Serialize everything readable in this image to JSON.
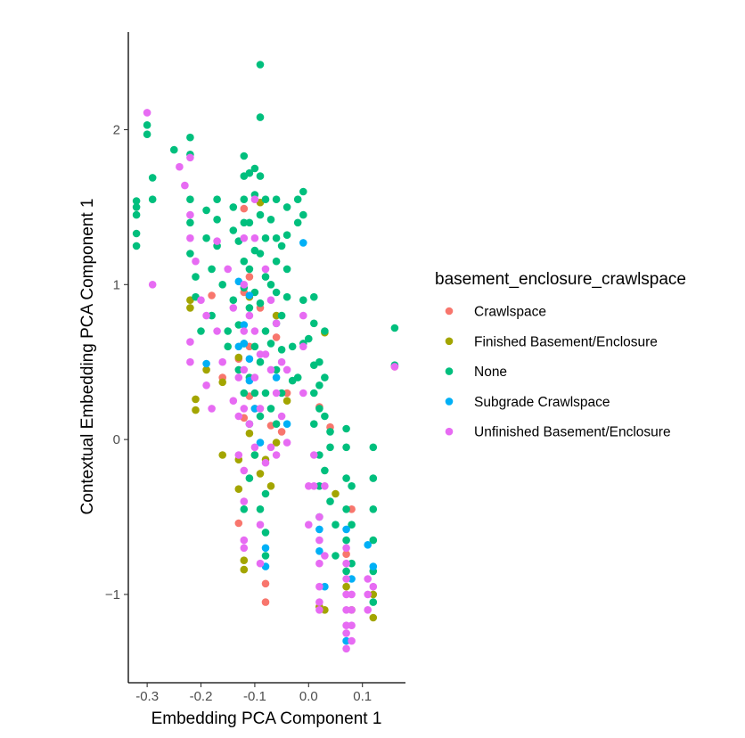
{
  "chart_data": {
    "type": "scatter",
    "xlabel": "Embedding PCA Component 1",
    "ylabel": "Contextual Embedding PCA Component 1",
    "xlim": [
      -0.335,
      0.18
    ],
    "ylim": [
      -1.57,
      2.63
    ],
    "x_ticks": [
      -0.3,
      -0.2,
      -0.1,
      0.0,
      0.1
    ],
    "x_tick_labels": [
      "-0.3",
      "-0.2",
      "-0.1",
      "0.0",
      "0.1"
    ],
    "y_ticks": [
      -1,
      0,
      1,
      2
    ],
    "y_tick_labels": [
      "−1",
      "0",
      "1",
      "2"
    ],
    "grid": false,
    "legend": {
      "title": "basement_enclosure_crawlspace",
      "placement": "right"
    },
    "series": [
      {
        "name": "Crawlspace",
        "color": "#F8766D",
        "points": [
          [
            -0.12,
            1.49
          ],
          [
            -0.11,
            1.05
          ],
          [
            -0.09,
            0.85
          ],
          [
            -0.13,
            0.52
          ],
          [
            -0.16,
            0.4
          ],
          [
            -0.11,
            0.28
          ],
          [
            -0.06,
            0.66
          ],
          [
            -0.05,
            0.05
          ],
          [
            0.02,
            0.21
          ],
          [
            -0.13,
            -0.54
          ],
          [
            -0.08,
            -0.93
          ],
          [
            -0.08,
            -1.05
          ],
          [
            0.02,
            -1.08
          ],
          [
            0.07,
            -0.74
          ],
          [
            -0.07,
            0.09
          ],
          [
            -0.11,
            0.6
          ],
          [
            0.16,
            0.47
          ],
          [
            -0.12,
            0.95
          ],
          [
            -0.04,
            0.3
          ],
          [
            0.04,
            0.08
          ],
          [
            -0.18,
            0.93
          ],
          [
            -0.1,
            0.2
          ],
          [
            0.08,
            -0.45
          ],
          [
            -0.12,
            0.14
          ]
        ]
      },
      {
        "name": "Finished Basement/Enclosure",
        "color": "#A3A500",
        "points": [
          [
            -0.09,
            1.53
          ],
          [
            -0.22,
            0.85
          ],
          [
            -0.21,
            0.26
          ],
          [
            -0.21,
            0.19
          ],
          [
            -0.19,
            0.45
          ],
          [
            -0.16,
            0.37
          ],
          [
            -0.16,
            -0.1
          ],
          [
            -0.13,
            -0.13
          ],
          [
            -0.13,
            -0.32
          ],
          [
            -0.12,
            -0.84
          ],
          [
            -0.12,
            -0.78
          ],
          [
            -0.11,
            0.04
          ],
          [
            -0.1,
            -0.1
          ],
          [
            -0.09,
            -0.22
          ],
          [
            -0.08,
            -0.13
          ],
          [
            -0.07,
            -0.3
          ],
          [
            -0.06,
            -0.02
          ],
          [
            0.03,
            0.69
          ],
          [
            0.03,
            -1.1
          ],
          [
            0.02,
            -1.08
          ],
          [
            0.07,
            -0.95
          ],
          [
            0.08,
            -1.1
          ],
          [
            0.12,
            -1.15
          ],
          [
            0.12,
            -1.0
          ],
          [
            -0.13,
            0.53
          ],
          [
            -0.11,
            0.92
          ],
          [
            -0.06,
            0.8
          ],
          [
            -0.04,
            0.25
          ],
          [
            0.05,
            -0.35
          ],
          [
            -0.22,
            0.9
          ]
        ]
      },
      {
        "name": "None",
        "color": "#00BF7D",
        "points": [
          [
            -0.09,
            2.42
          ],
          [
            -0.09,
            2.08
          ],
          [
            -0.3,
            2.03
          ],
          [
            -0.3,
            1.97
          ],
          [
            -0.29,
            1.69
          ],
          [
            -0.29,
            1.55
          ],
          [
            -0.32,
            1.54
          ],
          [
            -0.32,
            1.5
          ],
          [
            -0.32,
            1.45
          ],
          [
            -0.32,
            1.33
          ],
          [
            -0.32,
            1.25
          ],
          [
            -0.25,
            1.87
          ],
          [
            -0.22,
            1.95
          ],
          [
            -0.22,
            1.84
          ],
          [
            -0.22,
            1.55
          ],
          [
            -0.22,
            1.4
          ],
          [
            -0.22,
            1.2
          ],
          [
            -0.21,
            1.05
          ],
          [
            -0.21,
            0.92
          ],
          [
            -0.2,
            0.7
          ],
          [
            -0.19,
            1.48
          ],
          [
            -0.19,
            1.3
          ],
          [
            -0.18,
            1.1
          ],
          [
            -0.18,
            0.8
          ],
          [
            -0.17,
            1.55
          ],
          [
            -0.17,
            1.42
          ],
          [
            -0.17,
            1.25
          ],
          [
            -0.16,
            1.0
          ],
          [
            -0.15,
            0.6
          ],
          [
            -0.14,
            1.5
          ],
          [
            -0.14,
            1.35
          ],
          [
            -0.13,
            1.28
          ],
          [
            -0.13,
            0.74
          ],
          [
            -0.12,
            1.83
          ],
          [
            -0.12,
            1.7
          ],
          [
            -0.12,
            1.55
          ],
          [
            -0.12,
            1.4
          ],
          [
            -0.12,
            1.15
          ],
          [
            -0.12,
            0.98
          ],
          [
            -0.12,
            0.62
          ],
          [
            -0.11,
            1.72
          ],
          [
            -0.11,
            1.4
          ],
          [
            -0.11,
            1.1
          ],
          [
            -0.11,
            0.85
          ],
          [
            -0.11,
            0.4
          ],
          [
            -0.11,
            0.1
          ],
          [
            -0.1,
            1.75
          ],
          [
            -0.1,
            1.58
          ],
          [
            -0.1,
            1.22
          ],
          [
            -0.1,
            0.95
          ],
          [
            -0.1,
            0.6
          ],
          [
            -0.1,
            0.3
          ],
          [
            -0.1,
            -0.1
          ],
          [
            -0.09,
            1.7
          ],
          [
            -0.09,
            1.45
          ],
          [
            -0.09,
            1.2
          ],
          [
            -0.09,
            0.88
          ],
          [
            -0.09,
            0.5
          ],
          [
            -0.08,
            1.55
          ],
          [
            -0.08,
            1.3
          ],
          [
            -0.08,
            1.05
          ],
          [
            -0.08,
            0.7
          ],
          [
            -0.08,
            0.3
          ],
          [
            -0.08,
            -0.35
          ],
          [
            -0.08,
            -0.6
          ],
          [
            -0.07,
            1.42
          ],
          [
            -0.07,
            1.0
          ],
          [
            -0.07,
            0.62
          ],
          [
            -0.07,
            0.2
          ],
          [
            -0.06,
            1.55
          ],
          [
            -0.06,
            1.3
          ],
          [
            -0.06,
            1.15
          ],
          [
            -0.06,
            0.95
          ],
          [
            -0.06,
            0.75
          ],
          [
            -0.06,
            0.45
          ],
          [
            -0.06,
            0.1
          ],
          [
            -0.05,
            1.25
          ],
          [
            -0.05,
            0.8
          ],
          [
            -0.05,
            0.58
          ],
          [
            -0.04,
            1.5
          ],
          [
            -0.04,
            1.32
          ],
          [
            -0.04,
            1.1
          ],
          [
            -0.04,
            0.92
          ],
          [
            -0.03,
            0.6
          ],
          [
            -0.03,
            0.38
          ],
          [
            -0.02,
            1.55
          ],
          [
            -0.02,
            1.4
          ],
          [
            -0.01,
            1.6
          ],
          [
            -0.01,
            1.45
          ],
          [
            -0.01,
            0.9
          ],
          [
            -0.01,
            0.62
          ],
          [
            0.01,
            0.92
          ],
          [
            0.01,
            0.75
          ],
          [
            0.01,
            0.48
          ],
          [
            0.01,
            0.3
          ],
          [
            0.01,
            0.1
          ],
          [
            0.02,
            0.5
          ],
          [
            0.02,
            0.35
          ],
          [
            0.02,
            0.2
          ],
          [
            0.02,
            -0.1
          ],
          [
            0.02,
            -0.3
          ],
          [
            0.02,
            -0.5
          ],
          [
            0.03,
            0.7
          ],
          [
            0.03,
            0.4
          ],
          [
            0.03,
            0.15
          ],
          [
            0.03,
            -0.2
          ],
          [
            0.04,
            0.05
          ],
          [
            0.04,
            -0.05
          ],
          [
            0.04,
            -0.4
          ],
          [
            0.05,
            -0.55
          ],
          [
            0.05,
            -0.75
          ],
          [
            0.07,
            0.07
          ],
          [
            0.07,
            -0.05
          ],
          [
            0.07,
            -0.25
          ],
          [
            0.07,
            -0.45
          ],
          [
            0.07,
            -0.65
          ],
          [
            0.07,
            -0.85
          ],
          [
            0.08,
            -0.3
          ],
          [
            0.08,
            -0.55
          ],
          [
            0.08,
            -0.8
          ],
          [
            0.12,
            -0.05
          ],
          [
            0.12,
            -0.25
          ],
          [
            0.12,
            -0.45
          ],
          [
            0.12,
            -0.65
          ],
          [
            0.12,
            -0.85
          ],
          [
            0.12,
            -1.05
          ],
          [
            0.16,
            0.72
          ],
          [
            0.16,
            0.48
          ],
          [
            -0.14,
            0.9
          ],
          [
            -0.15,
            0.7
          ],
          [
            -0.13,
            0.45
          ],
          [
            -0.12,
            0.3
          ],
          [
            -0.09,
            0.15
          ],
          [
            -0.11,
            -0.25
          ],
          [
            -0.12,
            -0.45
          ],
          [
            -0.09,
            -0.45
          ],
          [
            -0.08,
            -0.75
          ],
          [
            -0.05,
            0.3
          ],
          [
            0.0,
            0.65
          ],
          [
            -0.02,
            0.4
          ]
        ]
      },
      {
        "name": "Subgrade Crawlspace",
        "color": "#00B0F6",
        "points": [
          [
            -0.01,
            1.27
          ],
          [
            -0.19,
            0.49
          ],
          [
            -0.13,
            1.02
          ],
          [
            -0.12,
            0.74
          ],
          [
            -0.12,
            0.62
          ],
          [
            -0.11,
            0.93
          ],
          [
            -0.11,
            0.52
          ],
          [
            -0.11,
            0.38
          ],
          [
            -0.1,
            0.2
          ],
          [
            -0.09,
            -0.02
          ],
          [
            -0.08,
            -0.7
          ],
          [
            -0.08,
            -0.82
          ],
          [
            0.02,
            -0.58
          ],
          [
            0.02,
            -0.72
          ],
          [
            0.03,
            -0.95
          ],
          [
            0.07,
            -0.58
          ],
          [
            0.07,
            -1.3
          ],
          [
            0.08,
            -0.9
          ],
          [
            0.11,
            -0.68
          ],
          [
            0.12,
            -0.82
          ],
          [
            -0.13,
            0.6
          ],
          [
            -0.06,
            0.4
          ],
          [
            -0.04,
            0.1
          ]
        ]
      },
      {
        "name": "Unfinished Basement/Enclosure",
        "color": "#E76BF3",
        "points": [
          [
            -0.3,
            2.11
          ],
          [
            -0.29,
            1.0
          ],
          [
            -0.24,
            1.76
          ],
          [
            -0.22,
            1.82
          ],
          [
            -0.23,
            1.64
          ],
          [
            -0.22,
            1.45
          ],
          [
            -0.22,
            1.3
          ],
          [
            -0.22,
            0.63
          ],
          [
            -0.22,
            0.5
          ],
          [
            -0.21,
            1.15
          ],
          [
            -0.2,
            0.9
          ],
          [
            -0.19,
            0.8
          ],
          [
            -0.19,
            0.35
          ],
          [
            -0.18,
            0.2
          ],
          [
            -0.17,
            1.28
          ],
          [
            -0.17,
            0.7
          ],
          [
            -0.16,
            0.5
          ],
          [
            -0.15,
            1.1
          ],
          [
            -0.14,
            0.85
          ],
          [
            -0.13,
            0.4
          ],
          [
            -0.13,
            0.15
          ],
          [
            -0.12,
            1.3
          ],
          [
            -0.12,
            1.0
          ],
          [
            -0.12,
            0.7
          ],
          [
            -0.12,
            0.45
          ],
          [
            -0.12,
            0.2
          ],
          [
            -0.12,
            -0.2
          ],
          [
            -0.12,
            -0.4
          ],
          [
            -0.12,
            -0.65
          ],
          [
            -0.12,
            -0.7
          ],
          [
            -0.11,
            0.8
          ],
          [
            -0.11,
            0.1
          ],
          [
            -0.1,
            1.55
          ],
          [
            -0.1,
            1.3
          ],
          [
            -0.1,
            0.7
          ],
          [
            -0.1,
            0.4
          ],
          [
            -0.1,
            -0.05
          ],
          [
            -0.09,
            0.2
          ],
          [
            -0.09,
            -0.55
          ],
          [
            -0.09,
            -0.8
          ],
          [
            -0.08,
            1.1
          ],
          [
            -0.08,
            0.55
          ],
          [
            -0.08,
            -0.15
          ],
          [
            -0.07,
            0.9
          ],
          [
            -0.07,
            0.45
          ],
          [
            -0.07,
            -0.05
          ],
          [
            -0.06,
            0.75
          ],
          [
            -0.06,
            0.3
          ],
          [
            -0.06,
            -0.1
          ],
          [
            -0.05,
            0.5
          ],
          [
            -0.05,
            0.15
          ],
          [
            -0.04,
            0.45
          ],
          [
            -0.04,
            -0.02
          ],
          [
            -0.01,
            0.8
          ],
          [
            -0.01,
            0.6
          ],
          [
            -0.01,
            0.3
          ],
          [
            0.0,
            -0.3
          ],
          [
            0.0,
            -0.55
          ],
          [
            0.01,
            -0.1
          ],
          [
            0.01,
            -0.3
          ],
          [
            0.02,
            -0.5
          ],
          [
            0.02,
            -0.65
          ],
          [
            0.02,
            -0.8
          ],
          [
            0.02,
            -0.95
          ],
          [
            0.02,
            -1.05
          ],
          [
            0.02,
            -1.1
          ],
          [
            0.03,
            -0.3
          ],
          [
            0.03,
            -0.75
          ],
          [
            0.07,
            -0.7
          ],
          [
            0.07,
            -0.8
          ],
          [
            0.07,
            -0.9
          ],
          [
            0.07,
            -1.0
          ],
          [
            0.07,
            -1.1
          ],
          [
            0.07,
            -1.2
          ],
          [
            0.07,
            -1.25
          ],
          [
            0.07,
            -1.35
          ],
          [
            0.08,
            -1.0
          ],
          [
            0.08,
            -1.1
          ],
          [
            0.08,
            -1.2
          ],
          [
            0.08,
            -1.3
          ],
          [
            0.11,
            -0.9
          ],
          [
            0.11,
            -1.0
          ],
          [
            0.11,
            -1.1
          ],
          [
            0.12,
            -0.95
          ],
          [
            0.16,
            0.47
          ],
          [
            -0.13,
            -0.1
          ],
          [
            -0.09,
            0.55
          ],
          [
            -0.14,
            0.25
          ]
        ]
      }
    ]
  }
}
